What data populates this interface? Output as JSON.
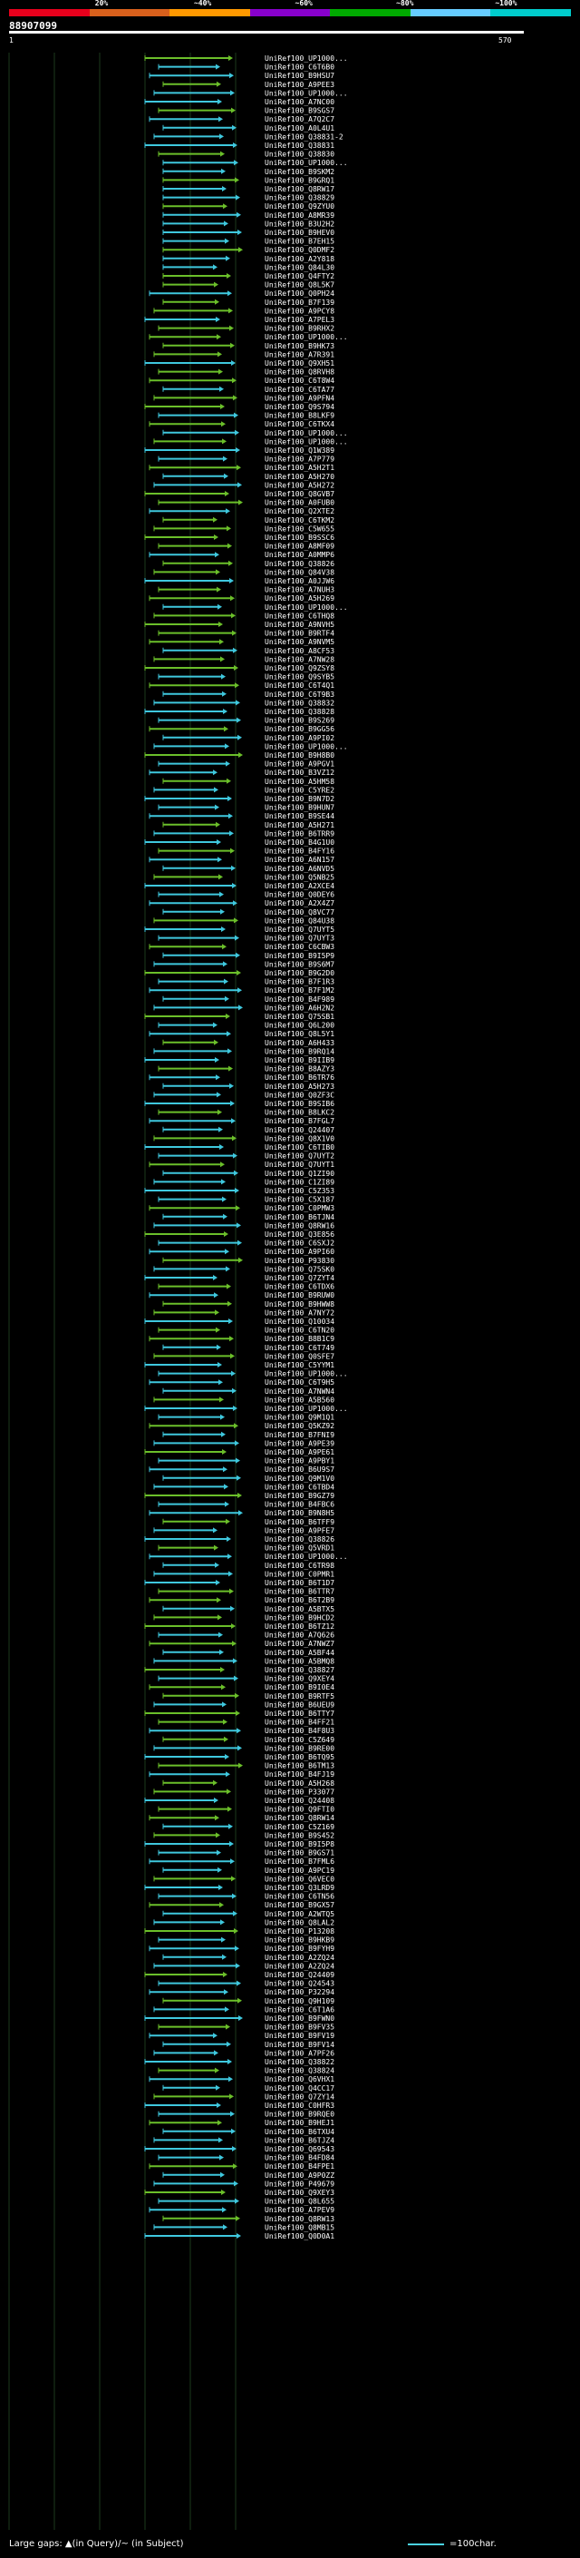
{
  "scale": {
    "labels": [
      "20%",
      "~40%",
      "~60%",
      "~80%",
      "~100%"
    ],
    "colors": [
      "#e8001c",
      "#d8601c",
      "#ff9900",
      "#8800cc",
      "#00aa00",
      "#66ccff",
      "#00cccc"
    ]
  },
  "query": {
    "id": "88907099",
    "start": "1",
    "end": "570"
  },
  "hits": [
    "UniRef100_UP1000...",
    "UniRef100_C6T6B0",
    "UniRef100_B9HSU7",
    "UniRef100_A9PEE3",
    "UniRef100_UP1000...",
    "UniRef100_A7NC00",
    "UniRef100_B9SGS7",
    "UniRef100_A7Q2C7",
    "UniRef100_A0L4U1",
    "UniRef100_Q38831-2",
    "UniRef100_Q38831",
    "UniRef100_Q38830",
    "UniRef100_UP1000...",
    "UniRef100_B9SKM2",
    "UniRef100_B9GRQ1",
    "UniRef100_Q8RW17",
    "UniRef100_Q38829",
    "UniRef100_Q9ZYU0",
    "UniRef100_A8MR39",
    "UniRef100_B3U2H2",
    "UniRef100_B9HEV0",
    "UniRef100_B7EH15",
    "UniRef100_Q0DMF2",
    "UniRef100_A2Y818",
    "UniRef100_Q84L30",
    "UniRef100_Q4FTY2",
    "UniRef100_Q8L5K7",
    "UniRef100_Q0PH24",
    "UniRef100_B7F139",
    "UniRef100_A9PCY8",
    "UniRef100_A7PEL3",
    "UniRef100_B9RHX2",
    "UniRef100_UP1000...",
    "UniRef100_B9HK73",
    "UniRef100_A7R391",
    "UniRef100_Q9XH51",
    "UniRef100_Q8RVH8",
    "UniRef100_C6T8W4",
    "UniRef100_C6TA77",
    "UniRef100_A9PFN4",
    "UniRef100_Q9S794",
    "UniRef100_B8LKF9",
    "UniRef100_C6TKX4",
    "UniRef100_UP1000...",
    "UniRef100_UP1000...",
    "UniRef100_Q1W389",
    "UniRef100_A7P779",
    "UniRef100_A5H2T1",
    "UniRef100_A5H270",
    "UniRef100_A5H272",
    "UniRef100_Q8GVB7",
    "UniRef100_A0FUB0",
    "UniRef100_Q2XTE2",
    "UniRef100_C6TKM2",
    "UniRef100_C5W655",
    "UniRef100_B9SSC6",
    "UniRef100_A8MF09",
    "UniRef100_A0MMP6",
    "UniRef100_Q38826",
    "UniRef100_Q84V38",
    "UniRef100_A0JJW6",
    "UniRef100_A7NUH3",
    "UniRef100_A5H269",
    "UniRef100_UP1000...",
    "UniRef100_C6THQ8",
    "UniRef100_A9NVH5",
    "UniRef100_B9RTF4",
    "UniRef100_A9NVM5",
    "UniRef100_A8CF53",
    "UniRef100_A7NW28",
    "UniRef100_Q9ZSY8",
    "UniRef100_Q9SYB5",
    "UniRef100_C6T4Q1",
    "UniRef100_C6T9B3",
    "UniRef100_Q38832",
    "UniRef100_Q38828",
    "UniRef100_B9S269",
    "UniRef100_B9GG56",
    "UniRef100_A9PI02",
    "UniRef100_UP1000...",
    "UniRef100_B9H8B0",
    "UniRef100_A9PGV1",
    "UniRef100_B3VZ12",
    "UniRef100_A5HM58",
    "UniRef100_C5YRE2",
    "UniRef100_B9N7D2",
    "UniRef100_B9HUN7",
    "UniRef100_B9SE44",
    "UniRef100_A5H271",
    "UniRef100_B6TRR9",
    "UniRef100_B4G1U0",
    "UniRef100_B4FY16",
    "UniRef100_A6N157",
    "UniRef100_A6NVD5",
    "UniRef100_Q5NB25",
    "UniRef100_A2XCE4",
    "UniRef100_Q0DEY6",
    "UniRef100_A2X4Z7",
    "UniRef100_Q8VC77",
    "UniRef100_Q84U38",
    "UniRef100_Q7UYT5",
    "UniRef100_Q7UYT3",
    "UniRef100_C6CBW3",
    "UniRef100_B9I5P9",
    "UniRef100_B9S6M7",
    "UniRef100_B9G2D0",
    "UniRef100_B7F1R3",
    "UniRef100_B7F1M2",
    "UniRef100_B4F989",
    "UniRef100_A6H2N2",
    "UniRef100_Q75SB1",
    "UniRef100_Q6L200",
    "UniRef100_Q8L5Y1",
    "UniRef100_A6H433",
    "UniRef100_B9RQ14",
    "UniRef100_B9IIB9",
    "UniRef100_B8AZY3",
    "UniRef100_B6TR76",
    "UniRef100_A5H273",
    "UniRef100_Q0ZF3C",
    "UniRef100_B9SIB6",
    "UniRef100_B8LKC2",
    "UniRef100_B7FGL7",
    "UniRef100_Q24407",
    "UniRef100_Q8X1V0",
    "UniRef100_C6TIB0",
    "UniRef100_Q7UYT2",
    "UniRef100_Q7UYT1",
    "UniRef100_Q1ZI90",
    "UniRef100_C1ZI89",
    "UniRef100_C5Z353",
    "UniRef100_C5X187",
    "UniRef100_C0PMW3",
    "UniRef100_B6TJN4",
    "UniRef100_Q8RW16",
    "UniRef100_Q3E856",
    "UniRef100_C6SXJ2",
    "UniRef100_A9PI60",
    "UniRef100_P93830",
    "UniRef100_Q75SK0",
    "UniRef100_Q7ZYT4",
    "UniRef100_C6TDX6",
    "UniRef100_B9RUW0",
    "UniRef100_B9HWW8",
    "UniRef100_A7NY72",
    "UniRef100_Q10034",
    "UniRef100_C6TN20",
    "UniRef100_B8B1C9",
    "UniRef100_C6T749",
    "UniRef100_Q0SFE7",
    "UniRef100_C5YYM1",
    "UniRef100_UP1000...",
    "UniRef100_C6T9H5",
    "UniRef100_A7NWN4",
    "UniRef100_A5B560",
    "UniRef100_UP1000...",
    "UniRef100_Q9M1Q1",
    "UniRef100_Q5KZ92",
    "UniRef100_B7FNI9",
    "UniRef100_A9PE39",
    "UniRef100_A9PE61",
    "UniRef100_A9PBY1",
    "UniRef100_B6U9S7",
    "UniRef100_Q9M1V0",
    "UniRef100_C6TBD4",
    "UniRef100_B9GZ79",
    "UniRef100_B4FBC6",
    "UniRef100_B9N8H5",
    "UniRef100_B6TFF9",
    "UniRef100_A9PFE7",
    "UniRef100_Q38826",
    "UniRef100_Q5VRD1",
    "UniRef100_UP1000...",
    "UniRef100_C6TR98",
    "UniRef100_C0PMR1",
    "UniRef100_B6T1D7",
    "UniRef100_B6TTR7",
    "UniRef100_B6T2B9",
    "UniRef100_A5BTX5",
    "UniRef100_B9HCD2",
    "UniRef100_B6TZ12",
    "UniRef100_A7Q626",
    "UniRef100_A7NWZ7",
    "UniRef100_A5BF44",
    "UniRef100_A5BMQ8",
    "UniRef100_Q38827",
    "UniRef100_Q9XEY4",
    "UniRef100_B9I0E4",
    "UniRef100_B9RTF5",
    "UniRef100_B6UEU9",
    "UniRef100_B6TTY7",
    "UniRef100_B4FF21",
    "UniRef100_B4F8U3",
    "UniRef100_C5Z649",
    "UniRef100_B9RE00",
    "UniRef100_B6TQ95",
    "UniRef100_B6TM13",
    "UniRef100_B4FJ19",
    "UniRef100_A5H268",
    "UniRef100_P33077",
    "UniRef100_Q24408",
    "UniRef100_Q9FTI0",
    "UniRef100_Q8RW14",
    "UniRef100_C5Z169",
    "UniRef100_B9S452",
    "UniRef100_B9I5P8",
    "UniRef100_B9GS71",
    "UniRef100_B7FML6",
    "UniRef100_A9PC19",
    "UniRef100_Q6VEC0",
    "UniRef100_Q3LRD9",
    "UniRef100_C6TN56",
    "UniRef100_B9GX57",
    "UniRef100_A2WTQ5",
    "UniRef100_Q8LAL2",
    "UniRef100_P13208",
    "UniRef100_B9HKB9",
    "UniRef100_B9FYH9",
    "UniRef100_A2ZQ24",
    "UniRef100_A2ZQ24",
    "UniRef100_Q24409",
    "UniRef100_Q24543",
    "UniRef100_P32294",
    "UniRef100_Q9H109",
    "UniRef100_C6T1A6",
    "UniRef100_B9FWN0",
    "UniRef100_B9FV35",
    "UniRef100_B9FV19",
    "UniRef100_B9FV14",
    "UniRef100_A7PF26",
    "UniRef100_Q38822",
    "UniRef100_Q38824",
    "UniRef100_Q6VHX1",
    "UniRef100_Q4CC17",
    "UniRef100_Q7ZY14",
    "UniRef100_C0HFR3",
    "UniRef100_B9RQE0",
    "UniRef100_B9HEJ1",
    "UniRef100_B6TXU4",
    "UniRef100_B6TJZ4",
    "UniRef100_Q69543",
    "UniRef100_B4FD84",
    "UniRef100_B4FPE1",
    "UniRef100_A9P0ZZ",
    "UniRef100_P49679",
    "UniRef100_Q9XEY3",
    "UniRef100_Q8L655",
    "UniRef100_A7PEV9",
    "UniRef100_Q8RW13",
    "UniRef100_Q8MB15",
    "UniRef100_Q0D0A1"
  ],
  "footer": {
    "legend_left": "Large gaps: ▲(in Query)/~ (in Subject)",
    "legend_right": "=100char."
  }
}
